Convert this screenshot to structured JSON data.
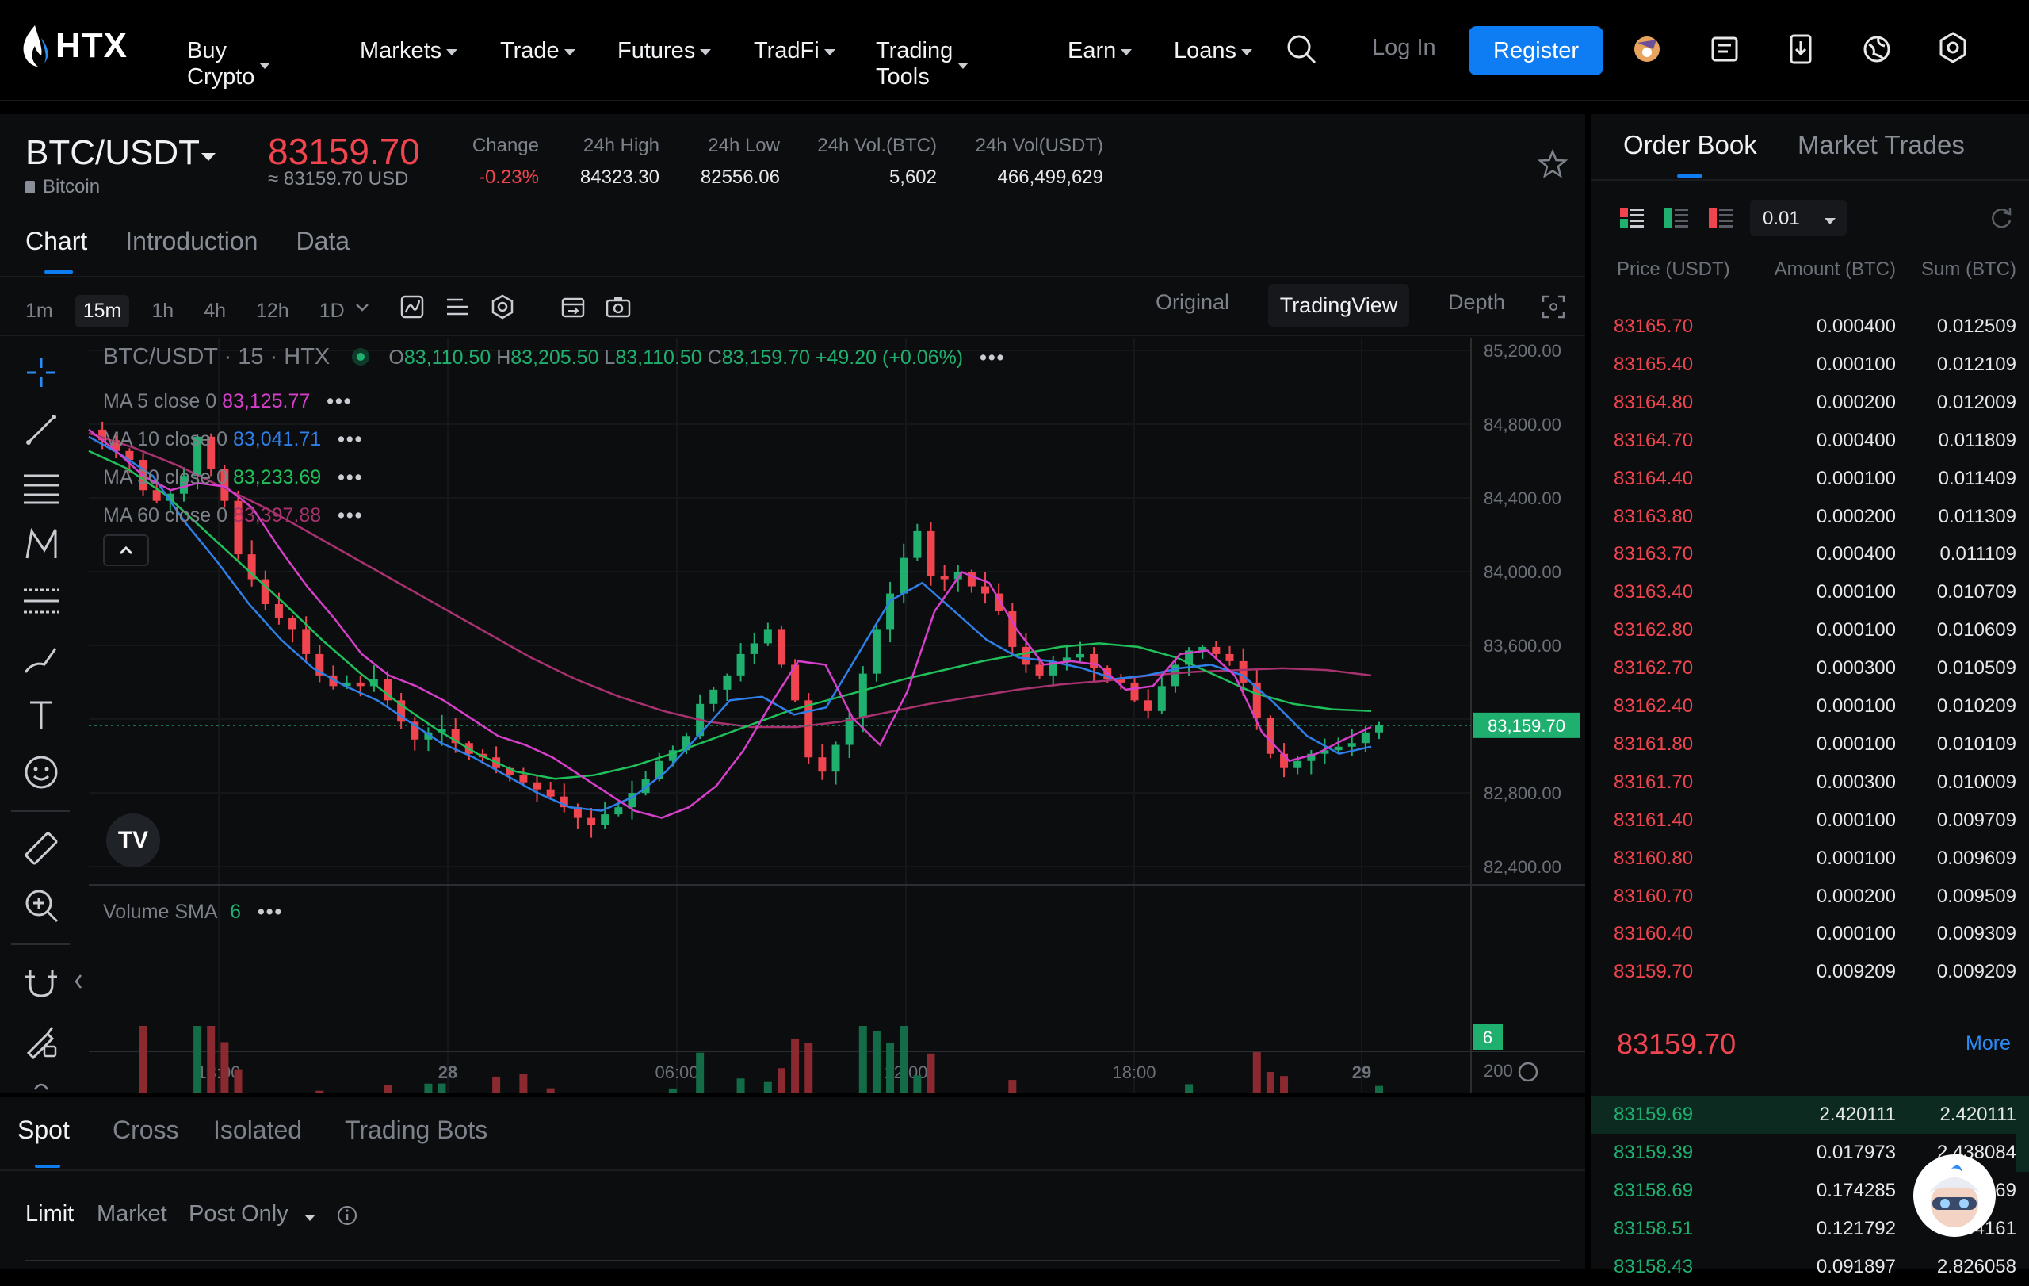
{
  "nav": {
    "logo_text": "HTX",
    "menu": [
      {
        "label": "Buy Crypto"
      },
      {
        "label": "Markets"
      },
      {
        "label": "Trade"
      },
      {
        "label": "Futures"
      },
      {
        "label": "TradFi"
      },
      {
        "label": "Trading Tools"
      },
      {
        "label": "Earn"
      },
      {
        "label": "Loans"
      }
    ],
    "login": "Log In",
    "register": "Register"
  },
  "ticker": {
    "pair": "BTC/USDT",
    "coin_name": "Bitcoin",
    "last_price": "83159.70",
    "usd_approx": "≈ 83159.70 USD",
    "stats": [
      {
        "label": "Change",
        "value": "-0.23%",
        "color": "#f0454f"
      },
      {
        "label": "24h High",
        "value": "84323.30"
      },
      {
        "label": "24h Low",
        "value": "82556.06"
      },
      {
        "label": "24h Vol.(BTC)",
        "value": "5,602"
      },
      {
        "label": "24h Vol(USDT)",
        "value": "466,499,629"
      }
    ]
  },
  "chart_tabs": [
    "Chart",
    "Introduction",
    "Data"
  ],
  "timeframes": [
    "1m",
    "15m",
    "1h",
    "4h",
    "12h",
    "1D"
  ],
  "active_timeframe": "15m",
  "views": {
    "original": "Original",
    "tradingview": "TradingView",
    "depth": "Depth"
  },
  "chart_legend": {
    "symbol": "BTC/USDT · 15 · HTX",
    "o_label": "O",
    "o": "83,110.50",
    "h_label": "H",
    "h": "83,205.50",
    "l_label": "L",
    "l": "83,110.50",
    "c_label": "C",
    "c": "83,159.70",
    "change": "+49.20 (+0.06%)",
    "ma": [
      {
        "label": "MA 5 close 0",
        "value": "83,125.77",
        "color": "#d63fc9"
      },
      {
        "label": "MA 10 close 0",
        "value": "83,041.71",
        "color": "#2f7fe8"
      },
      {
        "label": "MA 30 close 0",
        "value": "83,233.69",
        "color": "#1fbf5a"
      },
      {
        "label": "MA 60 close 0",
        "value": "83,397.88",
        "color": "#a8326f"
      }
    ],
    "volume_label": "Volume SMA",
    "volume_value": "6"
  },
  "chart_data": {
    "type": "candlestick",
    "y_ticks": [
      "85,200.00",
      "84,800.00",
      "84,400.00",
      "84,000.00",
      "83,600.00",
      "83,200.00",
      "82,800.00",
      "82,400.00"
    ],
    "ylim": [
      82300,
      85300
    ],
    "x_ticks": [
      "18:00",
      "28",
      "06:00",
      "12:00",
      "18:00",
      "29"
    ],
    "current_price_label": "83,159.70",
    "volume_tick": "200",
    "volume_current_label": "6",
    "close_path": [
      84820,
      84760,
      84700,
      84650,
      84480,
      84420,
      84460,
      84560,
      84780,
      84600,
      84420,
      84120,
      83980,
      83840,
      83760,
      83700,
      83560,
      83440,
      83380,
      83400,
      83380,
      83420,
      83300,
      83180,
      83080,
      83120,
      83140,
      83060,
      83000,
      82980,
      82920,
      82880,
      82840,
      82800,
      82760,
      82700,
      82640,
      82600,
      82660,
      82700,
      82780,
      82860,
      82960,
      83020,
      83100,
      83280,
      83360,
      83440,
      83560,
      83620,
      83700,
      83500,
      83300,
      82980,
      82900,
      83050,
      83200,
      83450,
      83700,
      83900,
      84100,
      84250,
      84000,
      83980,
      84020,
      83940,
      83900,
      83800,
      83600,
      83500,
      83440,
      83520,
      83540,
      83560,
      83480,
      83420,
      83400,
      83300,
      83240,
      83380,
      83500,
      83580,
      83600,
      83560,
      83520,
      83400,
      83200,
      83000,
      82920,
      82960,
      83000,
      83020,
      83040,
      83060,
      83120,
      83160
    ],
    "ma5": [
      84820,
      84700,
      84560,
      84480,
      84520,
      84500,
      84380,
      84150,
      83940,
      83760,
      83560,
      83440,
      83380,
      83300,
      83200,
      83100,
      83050,
      82980,
      82880,
      82780,
      82680,
      82640,
      82700,
      82820,
      83020,
      83280,
      83520,
      83500,
      83200,
      83050,
      83350,
      83800,
      84020,
      83960,
      83700,
      83500,
      83520,
      83500,
      83360,
      83380,
      83560,
      83580,
      83440,
      83120,
      82960,
      83000,
      83080,
      83150
    ],
    "ma10": [
      84780,
      84680,
      84560,
      84300,
      84080,
      83840,
      83640,
      83480,
      83380,
      83300,
      83180,
      83060,
      82980,
      82880,
      82780,
      82700,
      82680,
      82760,
      82900,
      83100,
      83300,
      83320,
      83220,
      83260,
      83560,
      83860,
      83960,
      83800,
      83640,
      83540,
      83520,
      83480,
      83420,
      83440,
      83480,
      83500,
      83440,
      83280,
      83100,
      83000,
      83040
    ],
    "ma30": [
      84700,
      84600,
      84450,
      84250,
      84050,
      83850,
      83640,
      83450,
      83280,
      83130,
      83000,
      82900,
      82860,
      82880,
      82930,
      83000,
      83080,
      83160,
      83240,
      83300,
      83360,
      83420,
      83470,
      83520,
      83560,
      83600,
      83620,
      83600,
      83540,
      83440,
      83340,
      83280,
      83250,
      83240
    ],
    "ma60": [
      84800,
      84720,
      84620,
      84500,
      84380,
      84240,
      84100,
      83960,
      83820,
      83680,
      83540,
      83420,
      83320,
      83240,
      83180,
      83150,
      83150,
      83180,
      83230,
      83280,
      83320,
      83360,
      83390,
      83410,
      83440,
      83460,
      83470,
      83480,
      83470,
      83440
    ]
  },
  "bottom_tabs": [
    "Spot",
    "Cross",
    "Isolated",
    "Trading Bots"
  ],
  "order_types": {
    "limit": "Limit",
    "market": "Market",
    "post_only": "Post Only"
  },
  "orderbook": {
    "tabs": [
      "Order Book",
      "Market Trades"
    ],
    "precision": "0.01",
    "headers": [
      "Price (USDT)",
      "Amount (BTC)",
      "Sum (BTC)"
    ],
    "asks": [
      [
        "83165.70",
        "0.000400",
        "0.012509"
      ],
      [
        "83165.40",
        "0.000100",
        "0.012109"
      ],
      [
        "83164.80",
        "0.000200",
        "0.012009"
      ],
      [
        "83164.70",
        "0.000400",
        "0.011809"
      ],
      [
        "83164.40",
        "0.000100",
        "0.011409"
      ],
      [
        "83163.80",
        "0.000200",
        "0.011309"
      ],
      [
        "83163.70",
        "0.000400",
        "0.011109"
      ],
      [
        "83163.40",
        "0.000100",
        "0.010709"
      ],
      [
        "83162.80",
        "0.000100",
        "0.010609"
      ],
      [
        "83162.70",
        "0.000300",
        "0.010509"
      ],
      [
        "83162.40",
        "0.000100",
        "0.010209"
      ],
      [
        "83161.80",
        "0.000100",
        "0.010109"
      ],
      [
        "83161.70",
        "0.000300",
        "0.010009"
      ],
      [
        "83161.40",
        "0.000100",
        "0.009709"
      ],
      [
        "83160.80",
        "0.000100",
        "0.009609"
      ],
      [
        "83160.70",
        "0.000200",
        "0.009509"
      ],
      [
        "83160.40",
        "0.000100",
        "0.009309"
      ],
      [
        "83159.70",
        "0.009209",
        "0.009209"
      ]
    ],
    "mid_price": "83159.70",
    "more": "More",
    "bids": [
      [
        "83159.69",
        "2.420111",
        "2.420111"
      ],
      [
        "83159.39",
        "0.017973",
        "2.438084"
      ],
      [
        "83158.69",
        "0.174285",
        "2.612369"
      ],
      [
        "83158.51",
        "0.121792",
        "2.734161"
      ],
      [
        "83158.43",
        "0.091897",
        "2.826058"
      ]
    ]
  },
  "colors": {
    "up": "#1fb070",
    "down": "#f0454f",
    "accent": "#0e7cf3"
  }
}
